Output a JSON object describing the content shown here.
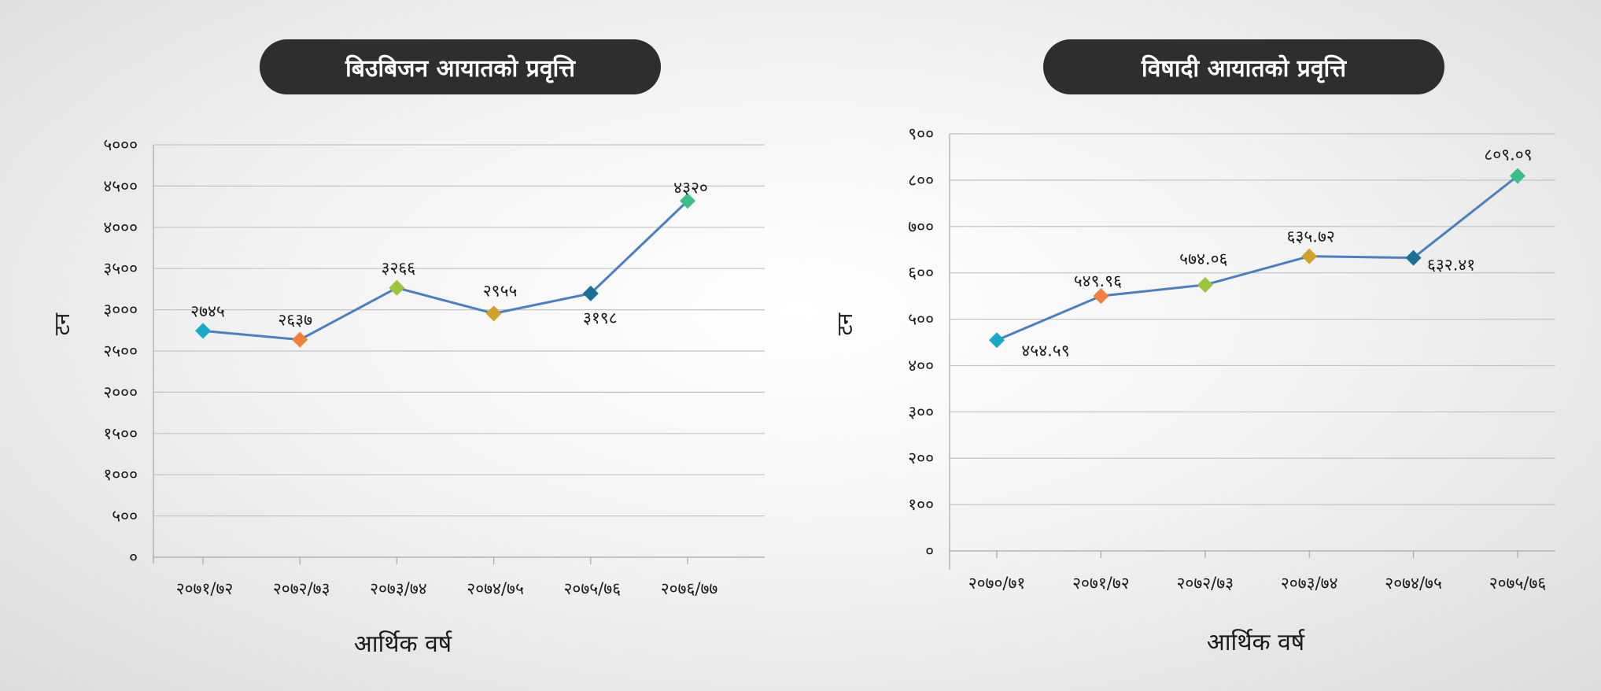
{
  "chart_data": [
    {
      "type": "line",
      "title": "बिउबिजन आयातको प्रवृत्ति",
      "xlabel": "आर्थिक वर्ष",
      "ylabel": "टन",
      "categories": [
        "२०७१/७२",
        "२०७२/७३",
        "२०७३/७४",
        "२०७४/७५",
        "२०७५/७६",
        "२०७६/७७"
      ],
      "values": [
        2745,
        2637,
        3266,
        2955,
        3198,
        4320
      ],
      "data_labels": [
        "२७४५",
        "२६३७",
        "३२६६",
        "२९५५",
        "३१९८",
        "४३२०"
      ],
      "ylim": [
        0,
        5000
      ],
      "yticks": [
        "०",
        "५००",
        "१०००",
        "१५००",
        "२०००",
        "२५००",
        "३०००",
        "३५००",
        "४०००",
        "४५००",
        "५०००"
      ],
      "grid": true,
      "marker_colors": [
        "#1aa8c8",
        "#f07f3c",
        "#9cc43c",
        "#d1a22a",
        "#1a6f95",
        "#3bbf8a"
      ],
      "line_color": "#4a7fc1"
    },
    {
      "type": "line",
      "title": "विषादी आयातको प्रवृत्ति",
      "xlabel": "आर्थिक वर्ष",
      "ylabel": "टन",
      "categories": [
        "२०७०/७१",
        "२०७१/७२",
        "२०७२/७३",
        "२०७३/७४",
        "२०७४/७५",
        "२०७५/७६"
      ],
      "values": [
        454.59,
        549.96,
        574.06,
        635.72,
        632.41,
        809.09
      ],
      "data_labels": [
        "४५४.५९",
        "५४९.९६",
        "५७४.०६",
        "६३५.७२",
        "६३२.४१",
        "८०९.०९"
      ],
      "ylim": [
        0,
        900
      ],
      "yticks": [
        "०",
        "१००",
        "२००",
        "३००",
        "४००",
        "५००",
        "६००",
        "७००",
        "८००",
        "९००"
      ],
      "grid": true,
      "marker_colors": [
        "#1aa8c8",
        "#f07f3c",
        "#9cc43c",
        "#d1a22a",
        "#1a6f95",
        "#3bbf8a"
      ],
      "line_color": "#4a7fc1"
    }
  ]
}
